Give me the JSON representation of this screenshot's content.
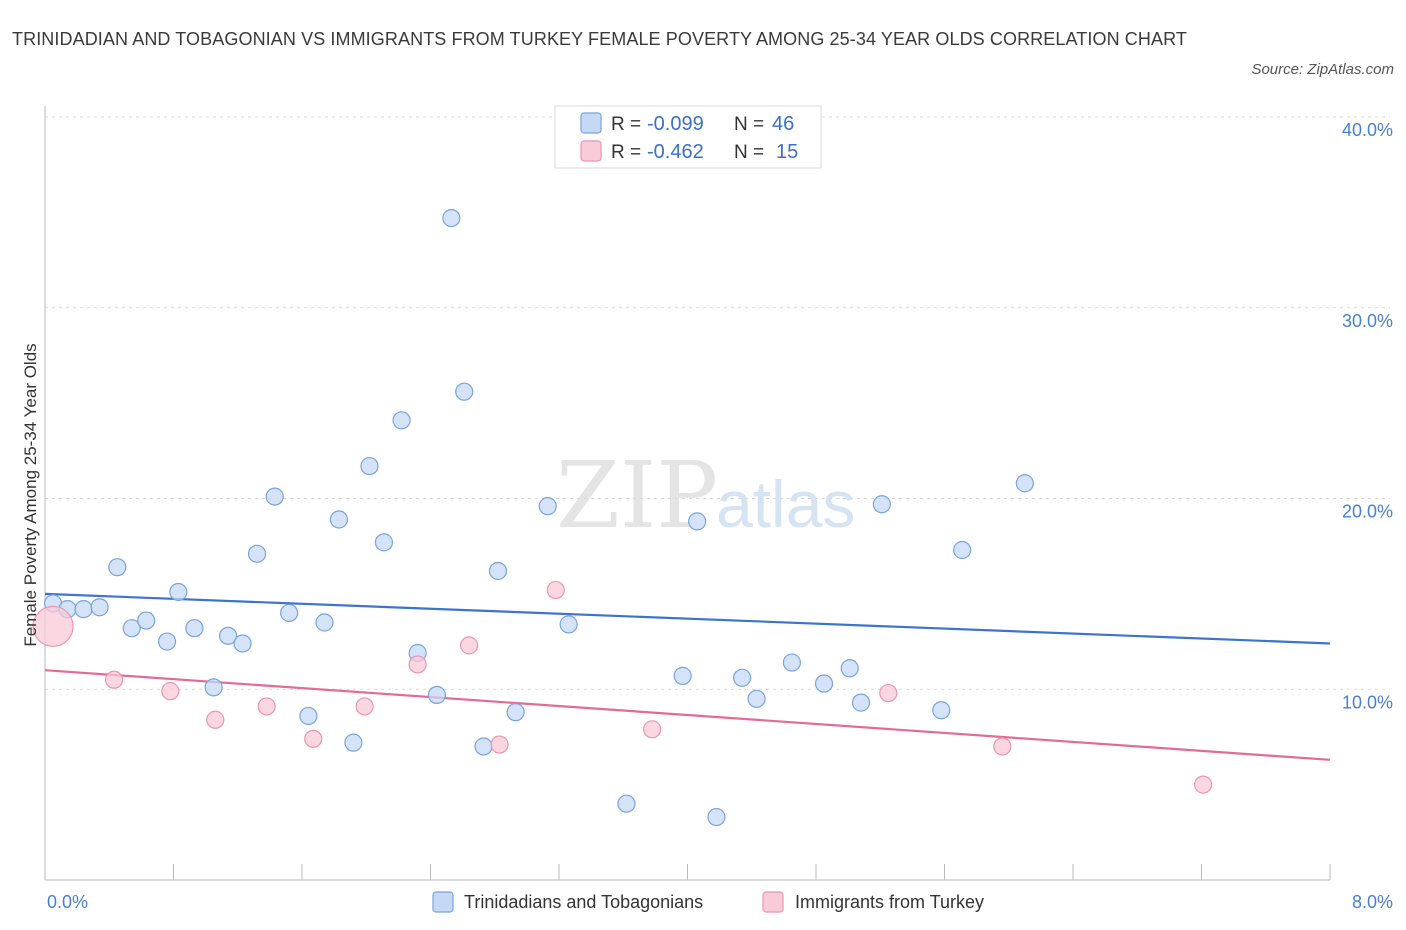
{
  "title": "TRINIDADIAN AND TOBAGONIAN VS IMMIGRANTS FROM TURKEY FEMALE POVERTY AMONG 25-34 YEAR OLDS CORRELATION CHART",
  "source": "Source: ZipAtlas.com",
  "watermark": {
    "zip": "ZIP",
    "atlas": "atlas"
  },
  "colors": {
    "blue": "#3a74d0",
    "pink": "#e46a94",
    "blue_fill": "#c5d9f5",
    "pink_fill": "#f9cad8",
    "tick": "#4a7fd0"
  },
  "chart_data": {
    "type": "scatter",
    "ylabel": "Female Poverty Among 25-34 Year Olds",
    "xlim": [
      0,
      8
    ],
    "ylim": [
      0,
      40
    ],
    "x_tick_labels": [
      "0.0%",
      "8.0%"
    ],
    "y_ticks": [
      10,
      20,
      30,
      40
    ],
    "y_tick_labels": [
      "10.0%",
      "20.0%",
      "30.0%",
      "40.0%"
    ],
    "legend": [
      {
        "r_label": "R =",
        "r_value": "-0.099",
        "n_label": "N =",
        "n_value": "46"
      },
      {
        "r_label": "R =",
        "r_value": "-0.462",
        "n_label": "N =",
        "n_value": "15"
      }
    ],
    "series": [
      {
        "name": "Trinidadians and Tobagonians",
        "color": "#3a74d0",
        "trend": {
          "x": [
            0,
            8
          ],
          "y": [
            15.0,
            12.4
          ]
        },
        "points": [
          {
            "x": 0.05,
            "y": 14.5
          },
          {
            "x": 0.14,
            "y": 14.2
          },
          {
            "x": 0.24,
            "y": 14.2
          },
          {
            "x": 0.34,
            "y": 14.3
          },
          {
            "x": 0.45,
            "y": 16.4
          },
          {
            "x": 0.54,
            "y": 13.2
          },
          {
            "x": 0.63,
            "y": 13.6
          },
          {
            "x": 0.76,
            "y": 12.5
          },
          {
            "x": 0.83,
            "y": 15.1
          },
          {
            "x": 0.93,
            "y": 13.2
          },
          {
            "x": 1.05,
            "y": 10.1
          },
          {
            "x": 1.14,
            "y": 12.8
          },
          {
            "x": 1.23,
            "y": 12.4
          },
          {
            "x": 1.32,
            "y": 17.1
          },
          {
            "x": 1.43,
            "y": 20.1
          },
          {
            "x": 1.52,
            "y": 14.0
          },
          {
            "x": 1.64,
            "y": 8.6
          },
          {
            "x": 1.74,
            "y": 13.5
          },
          {
            "x": 1.83,
            "y": 18.9
          },
          {
            "x": 1.92,
            "y": 7.2
          },
          {
            "x": 2.02,
            "y": 21.7
          },
          {
            "x": 2.11,
            "y": 17.7
          },
          {
            "x": 2.22,
            "y": 24.1
          },
          {
            "x": 2.32,
            "y": 11.9
          },
          {
            "x": 2.44,
            "y": 9.7
          },
          {
            "x": 2.53,
            "y": 34.7
          },
          {
            "x": 2.61,
            "y": 25.6
          },
          {
            "x": 2.73,
            "y": 7.0
          },
          {
            "x": 2.82,
            "y": 16.2
          },
          {
            "x": 2.93,
            "y": 8.8
          },
          {
            "x": 3.13,
            "y": 19.6
          },
          {
            "x": 3.26,
            "y": 13.4
          },
          {
            "x": 3.62,
            "y": 4.0
          },
          {
            "x": 3.97,
            "y": 10.7
          },
          {
            "x": 4.06,
            "y": 18.8
          },
          {
            "x": 4.18,
            "y": 3.3
          },
          {
            "x": 4.34,
            "y": 10.6
          },
          {
            "x": 4.43,
            "y": 9.5
          },
          {
            "x": 4.65,
            "y": 11.4
          },
          {
            "x": 4.85,
            "y": 10.3
          },
          {
            "x": 5.01,
            "y": 11.1
          },
          {
            "x": 5.08,
            "y": 9.3
          },
          {
            "x": 5.21,
            "y": 19.7
          },
          {
            "x": 5.58,
            "y": 8.9
          },
          {
            "x": 5.71,
            "y": 17.3
          },
          {
            "x": 6.1,
            "y": 20.8
          }
        ]
      },
      {
        "name": "Immigrants from Turkey",
        "color": "#e46a94",
        "trend": {
          "x": [
            0,
            8
          ],
          "y": [
            11.0,
            6.3
          ]
        },
        "points": [
          {
            "x": 0.05,
            "y": 13.3,
            "large": true
          },
          {
            "x": 0.43,
            "y": 10.5
          },
          {
            "x": 0.78,
            "y": 9.9
          },
          {
            "x": 1.06,
            "y": 8.4
          },
          {
            "x": 1.38,
            "y": 9.1
          },
          {
            "x": 1.67,
            "y": 7.4
          },
          {
            "x": 1.99,
            "y": 9.1
          },
          {
            "x": 2.32,
            "y": 11.3
          },
          {
            "x": 2.64,
            "y": 12.3
          },
          {
            "x": 2.83,
            "y": 7.1
          },
          {
            "x": 3.18,
            "y": 15.2
          },
          {
            "x": 3.78,
            "y": 7.9
          },
          {
            "x": 5.25,
            "y": 9.8
          },
          {
            "x": 5.96,
            "y": 7.0
          },
          {
            "x": 7.21,
            "y": 5.0
          }
        ]
      }
    ]
  }
}
